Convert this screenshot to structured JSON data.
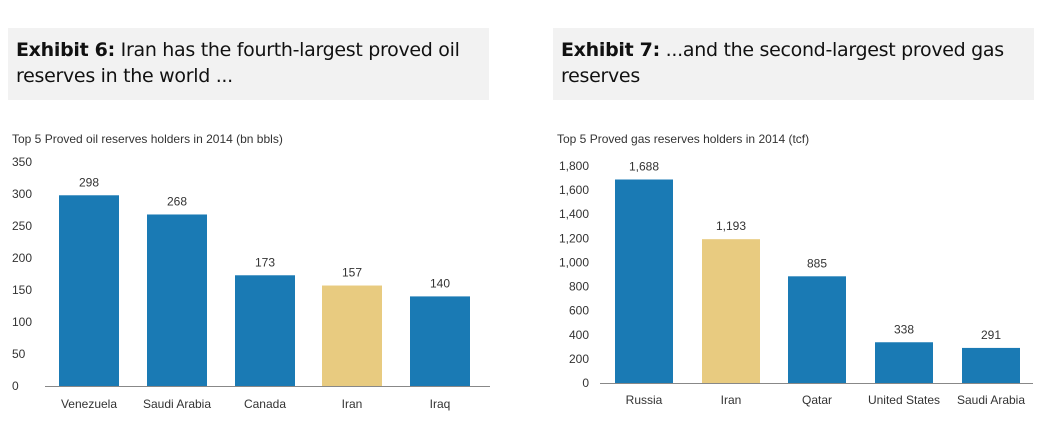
{
  "exhibits": [
    {
      "label": "Exhibit 6:",
      "title": "Iran has the fourth-largest proved oil reserves in the world ..."
    },
    {
      "label": "Exhibit 7:",
      "title": "...and the second-largest proved gas reserves"
    }
  ],
  "colors": {
    "bar": "#1a7ab4",
    "highlight": "#e8cb80",
    "axis": "#888888"
  },
  "chart_data": [
    {
      "type": "bar",
      "title": "Top 5 Proved oil reserves holders in 2014 (bn bbls)",
      "categories": [
        "Venezuela",
        "Saudi Arabia",
        "Canada",
        "Iran",
        "Iraq"
      ],
      "values": [
        298,
        268,
        173,
        157,
        140
      ],
      "value_labels": [
        "298",
        "268",
        "173",
        "157",
        "140"
      ],
      "highlight": "Iran",
      "ylim": [
        0,
        350
      ],
      "yticks": [
        0,
        50,
        100,
        150,
        200,
        250,
        300,
        350
      ],
      "ytick_labels": [
        "0",
        "50",
        "100",
        "150",
        "200",
        "250",
        "300",
        "350"
      ],
      "xlabel": "",
      "ylabel": "",
      "grid": false
    },
    {
      "type": "bar",
      "title": "Top 5 Proved gas reserves holders in 2014 (tcf)",
      "categories": [
        "Russia",
        "Iran",
        "Qatar",
        "United States",
        "Saudi Arabia"
      ],
      "values": [
        1688,
        1193,
        885,
        338,
        291
      ],
      "value_labels": [
        "1,688",
        "1,193",
        "885",
        "338",
        "291"
      ],
      "highlight": "Iran",
      "ylim": [
        0,
        1800
      ],
      "yticks": [
        0,
        200,
        400,
        600,
        800,
        1000,
        1200,
        1400,
        1600,
        1800
      ],
      "ytick_labels": [
        "0",
        "200",
        "400",
        "600",
        "800",
        "1,000",
        "1,200",
        "1,400",
        "1,600",
        "1,800"
      ],
      "xlabel": "",
      "ylabel": "",
      "grid": false
    }
  ]
}
